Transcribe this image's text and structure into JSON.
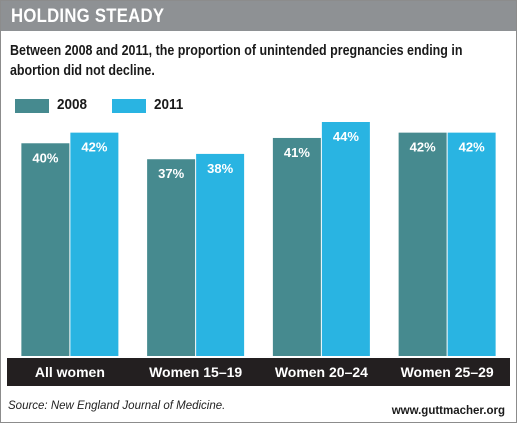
{
  "header": {
    "title": "HOLDING STEADY"
  },
  "subtitle": "Between 2008 and 2011, the proportion of unintended pregnancies ending in abortion did not decline.",
  "colors": {
    "header_bg": "#8e9194",
    "series_2008": "#468a8f",
    "series_2011": "#29b4e2",
    "axis_band": "#231f20"
  },
  "chart_data": {
    "type": "bar",
    "title": "",
    "xlabel": "",
    "ylabel": "",
    "ylim": [
      0,
      44
    ],
    "grid": false,
    "legend": "top-left",
    "categories": [
      "All women",
      "Women 15–19",
      "Women 20–24",
      "Women 25–29"
    ],
    "series": [
      {
        "name": "2008",
        "values": [
          40,
          37,
          41,
          42
        ],
        "labels": [
          "40%",
          "37%",
          "41%",
          "42%"
        ]
      },
      {
        "name": "2011",
        "values": [
          42,
          38,
          44,
          42
        ],
        "labels": [
          "42%",
          "38%",
          "44%",
          "42%"
        ]
      }
    ]
  },
  "footer": {
    "source": "Source: New England Journal of Medicine.",
    "website": "www.guttmacher.org"
  }
}
